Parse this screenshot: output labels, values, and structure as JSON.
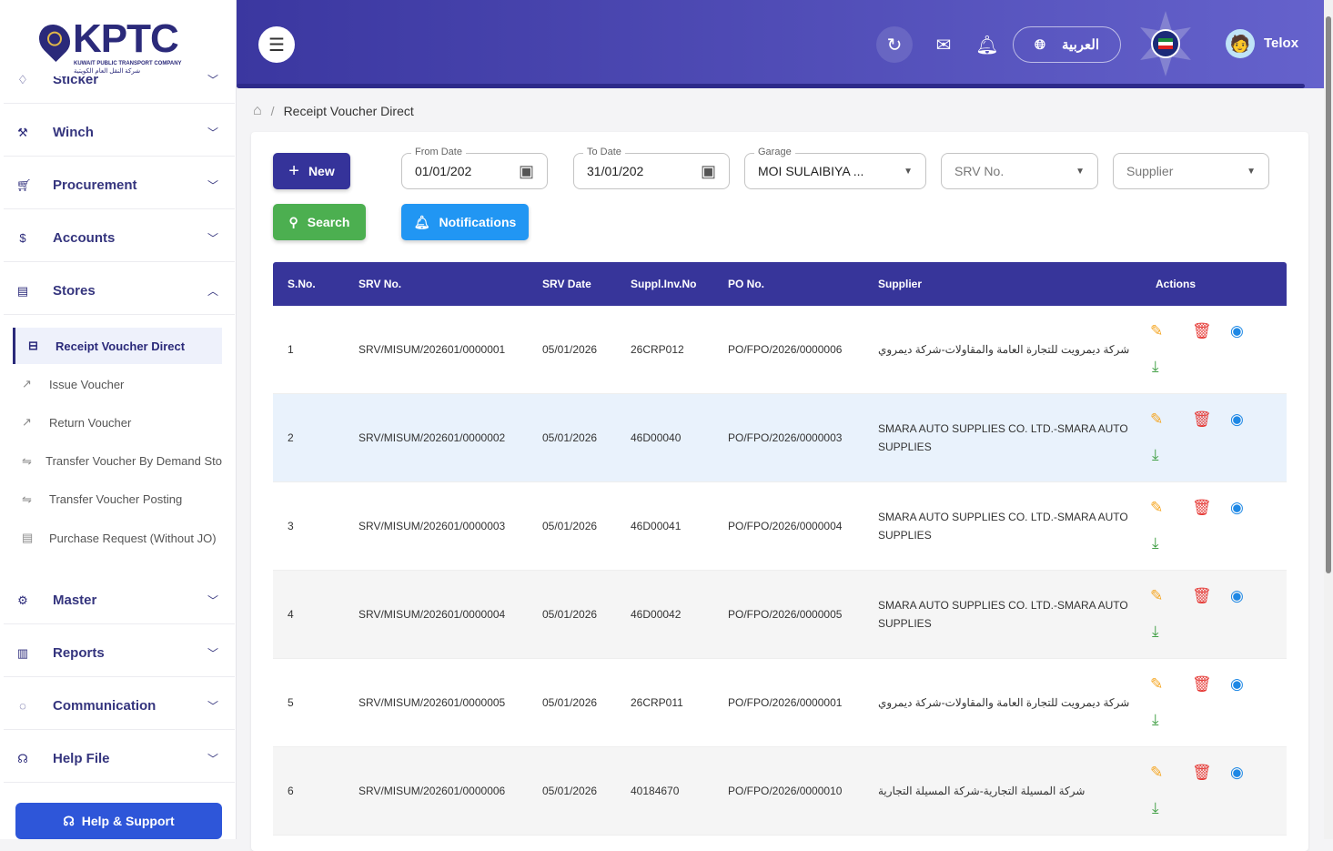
{
  "logo": {
    "name": "KPTC",
    "english": "KUWAIT PUBLIC TRANSPORT COMPANY",
    "arabic": "شركة النقل العام الكويتية"
  },
  "sidebar": {
    "items": [
      {
        "label": "Sticker",
        "icon": "tag-icon"
      },
      {
        "label": "Winch",
        "icon": "wrench-icon"
      },
      {
        "label": "Procurement",
        "icon": "cart-icon"
      },
      {
        "label": "Accounts",
        "icon": "dollar-icon"
      },
      {
        "label": "Stores",
        "icon": "store-icon"
      },
      {
        "label": "Master",
        "icon": "gear-icon"
      },
      {
        "label": "Reports",
        "icon": "chart-icon"
      },
      {
        "label": "Communication",
        "icon": "chat-icon"
      },
      {
        "label": "Help File",
        "icon": "headset-icon"
      }
    ],
    "sub_items": [
      {
        "label": "Receipt Voucher Direct",
        "active": true
      },
      {
        "label": "Issue Voucher"
      },
      {
        "label": "Return Voucher"
      },
      {
        "label": "Transfer Voucher By Demand Sto"
      },
      {
        "label": "Transfer Voucher Posting"
      },
      {
        "label": "Purchase Request (Without JO)"
      }
    ],
    "help_support": "Help & Support"
  },
  "header": {
    "language": "العربية",
    "user": "Telox"
  },
  "breadcrumb": {
    "current": "Receipt Voucher Direct"
  },
  "toolbar": {
    "new": "New",
    "search": "Search",
    "notifications": "Notifications"
  },
  "filters": {
    "from_date": {
      "label": "From Date",
      "value": "01/01/202"
    },
    "to_date": {
      "label": "To Date",
      "value": "31/01/202"
    },
    "garage": {
      "label": "Garage",
      "value": "MOI SULAIBIYA ..."
    },
    "srv_no": {
      "placeholder": "SRV No."
    },
    "supplier": {
      "placeholder": "Supplier"
    }
  },
  "colors": {
    "primary": "#37359a",
    "new": "#35339a",
    "search": "#4caf50",
    "notifications": "#2196f3",
    "edit": "#f5a623",
    "delete": "#e53935",
    "view": "#1e88e5",
    "download": "#43a047"
  },
  "table": {
    "headers": [
      "S.No.",
      "SRV No.",
      "SRV Date",
      "Suppl.Inv.No",
      "PO No.",
      "Supplier",
      "Actions"
    ],
    "rows": [
      [
        "1",
        "SRV/MISUM/202601/0000001",
        "05/01/2026",
        "26CRP012",
        "PO/FPO/2026/0000006",
        "شركة ديمرويت للتجارة العامة والمقاولات-شركة ديمروي"
      ],
      [
        "2",
        "SRV/MISUM/202601/0000002",
        "05/01/2026",
        "46D00040",
        "PO/FPO/2026/0000003",
        "SMARA AUTO SUPPLIES CO. LTD.-SMARA AUTO SUPPLIES"
      ],
      [
        "3",
        "SRV/MISUM/202601/0000003",
        "05/01/2026",
        "46D00041",
        "PO/FPO/2026/0000004",
        "SMARA AUTO SUPPLIES CO. LTD.-SMARA AUTO SUPPLIES"
      ],
      [
        "4",
        "SRV/MISUM/202601/0000004",
        "05/01/2026",
        "46D00042",
        "PO/FPO/2026/0000005",
        "SMARA AUTO SUPPLIES CO. LTD.-SMARA AUTO SUPPLIES"
      ],
      [
        "5",
        "SRV/MISUM/202601/0000005",
        "05/01/2026",
        "26CRP011",
        "PO/FPO/2026/0000001",
        "شركة ديمرويت للتجارة العامة والمقاولات-شركة ديمروي"
      ],
      [
        "6",
        "SRV/MISUM/202601/0000006",
        "05/01/2026",
        "40184670",
        "PO/FPO/2026/0000010",
        "شركة المسيلة التجارية-شركة المسيلة التجارية"
      ]
    ]
  }
}
